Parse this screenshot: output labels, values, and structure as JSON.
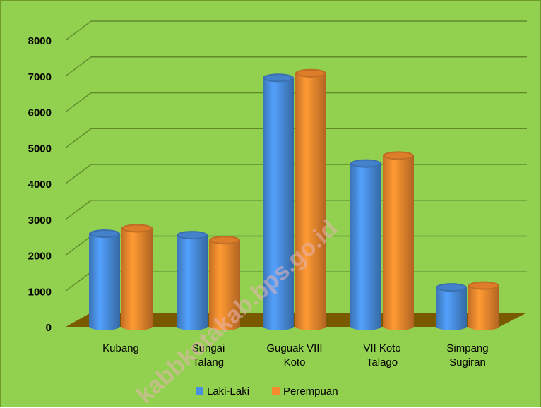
{
  "chart_data": {
    "type": "bar",
    "categories": [
      [
        "Kubang"
      ],
      [
        "Sungai",
        "Talang"
      ],
      [
        "Guguak VIII",
        "Koto"
      ],
      [
        "VII Koto",
        "Talago"
      ],
      [
        "Simpang",
        "Sugiran"
      ]
    ],
    "series": [
      {
        "name": "Laki-Laki",
        "values": [
          2600,
          2560,
          6950,
          4560,
          1100
        ],
        "color": "#4a90e2"
      },
      {
        "name": "Perempuan",
        "values": [
          2750,
          2420,
          7080,
          4780,
          1150
        ],
        "color": "#f58a2e"
      }
    ],
    "ylim": [
      0,
      8000
    ],
    "yticks": [
      0,
      1000,
      2000,
      3000,
      4000,
      5000,
      6000,
      7000,
      8000
    ],
    "grid": true,
    "legend": "bottom",
    "background": "#92d050",
    "floor_color": "#7a5a00"
  },
  "watermark": "kabbkotakab.bps.go.id"
}
